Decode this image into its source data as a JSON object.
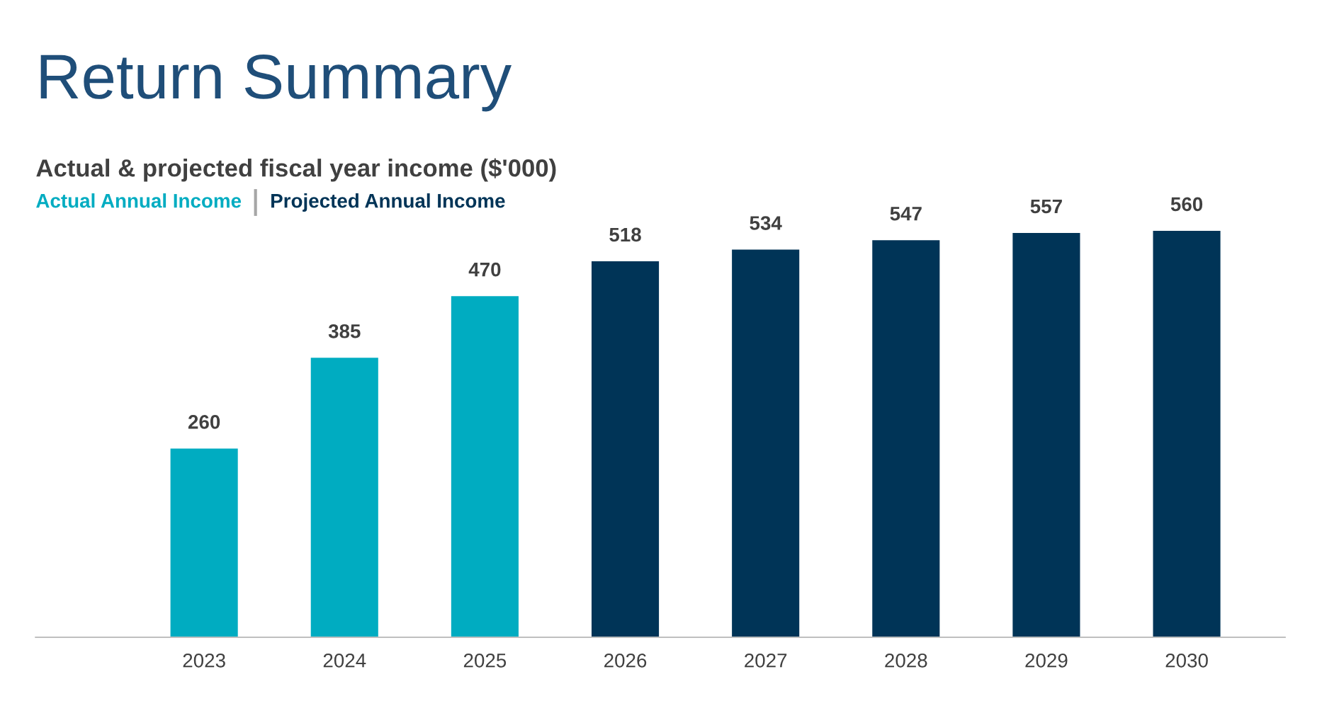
{
  "chart_data": {
    "type": "bar",
    "title": "Return Summary",
    "subtitle": "Actual & projected fiscal year income ($'000)",
    "categories": [
      "2023",
      "2024",
      "2025",
      "2026",
      "2027",
      "2028",
      "2029",
      "2030"
    ],
    "series": [
      {
        "name": "Actual Annual Income",
        "color": "#00acc1",
        "values": [
          260,
          385,
          470,
          null,
          null,
          null,
          null,
          null
        ]
      },
      {
        "name": "Projected Annual Income",
        "color": "#003457",
        "values": [
          null,
          null,
          null,
          518,
          534,
          547,
          557,
          560
        ]
      }
    ],
    "data_labels": true,
    "legend": "top left",
    "tick_labels": "x",
    "grid": false
  }
}
